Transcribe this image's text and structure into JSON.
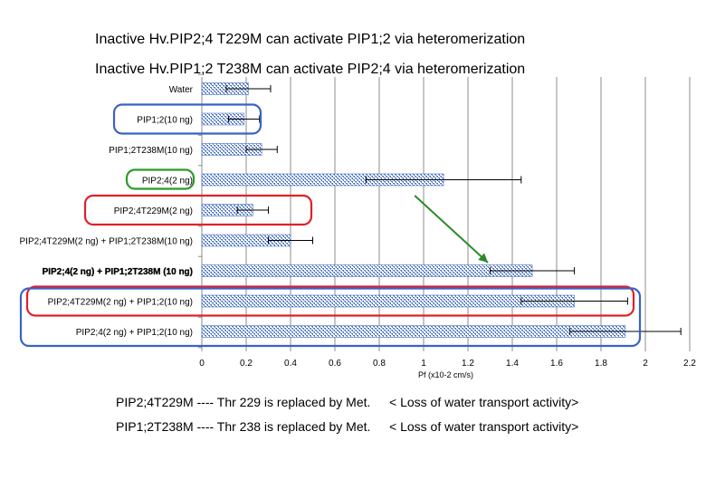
{
  "titles": [
    "Inactive Hv.PIP2;4 T229M  can activate PIP1;2 via heteromerization",
    "Inactive Hv.PIP1;2 T238M  can activate PIP2;4 via heteromerization"
  ],
  "notes": [
    {
      "left": "PIP2;4T229M ---- Thr 229 is replaced by Met.",
      "right": "< Loss of water transport activity>"
    },
    {
      "left": "PIP1;2T238M ---- Thr 238 is replaced by Met.",
      "right": "< Loss of water transport activity>"
    }
  ],
  "chart_data": {
    "type": "bar",
    "orientation": "horizontal",
    "categories": [
      "Water",
      "PIP1;2(10 ng)",
      "PIP1;2T238M(10 ng)",
      "PIP2;4(2 ng)",
      "PIP2;4T229M(2 ng)",
      "PIP2;4T229M(2 ng) + PIP1;2T238M(10 ng)",
      "PIP2;4(2 ng) + PIP1;2T238M (10 ng)",
      "PIP2;4T229M(2 ng) + PIP1;2(10 ng)",
      "PIP2;4(2 ng) + PIP1;2(10 ng)"
    ],
    "values": [
      0.21,
      0.19,
      0.27,
      1.09,
      0.23,
      0.4,
      1.49,
      1.68,
      1.91
    ],
    "errors": [
      0.1,
      0.07,
      0.07,
      0.35,
      0.07,
      0.1,
      0.19,
      0.24,
      0.25
    ],
    "xlabel": "Pf (x10-2 cm/s)",
    "xlim": [
      0,
      2.2
    ],
    "xticks": [
      "0",
      "0.2",
      "0.4",
      "0.6",
      "0.8",
      "1",
      "1.2",
      "1.4",
      "1.6",
      "1.8",
      "2",
      "2.2"
    ],
    "xtick_values": [
      0,
      0.2,
      0.4,
      0.6,
      0.8,
      1.0,
      1.2,
      1.4,
      1.6,
      1.8,
      2.0,
      2.2
    ],
    "grid": true,
    "bar_color": "#4f76c4",
    "emphasized_category_index": 6,
    "highlight_boxes": [
      {
        "color": "#3a62c8",
        "categories": [
          1
        ]
      },
      {
        "color": "#2a9a2a",
        "categories": [
          3
        ]
      },
      {
        "color": "#e0202a",
        "categories": [
          4
        ]
      },
      {
        "color": "#e0202a",
        "categories": [
          7
        ]
      },
      {
        "color": "#3a62c8",
        "categories": [
          7,
          8
        ]
      }
    ],
    "arrow": {
      "color": "#2a8a2a",
      "from": "PIP2;4(2 ng)",
      "to": "PIP2;4(2 ng) + PIP1;2T238M (10 ng)"
    }
  }
}
